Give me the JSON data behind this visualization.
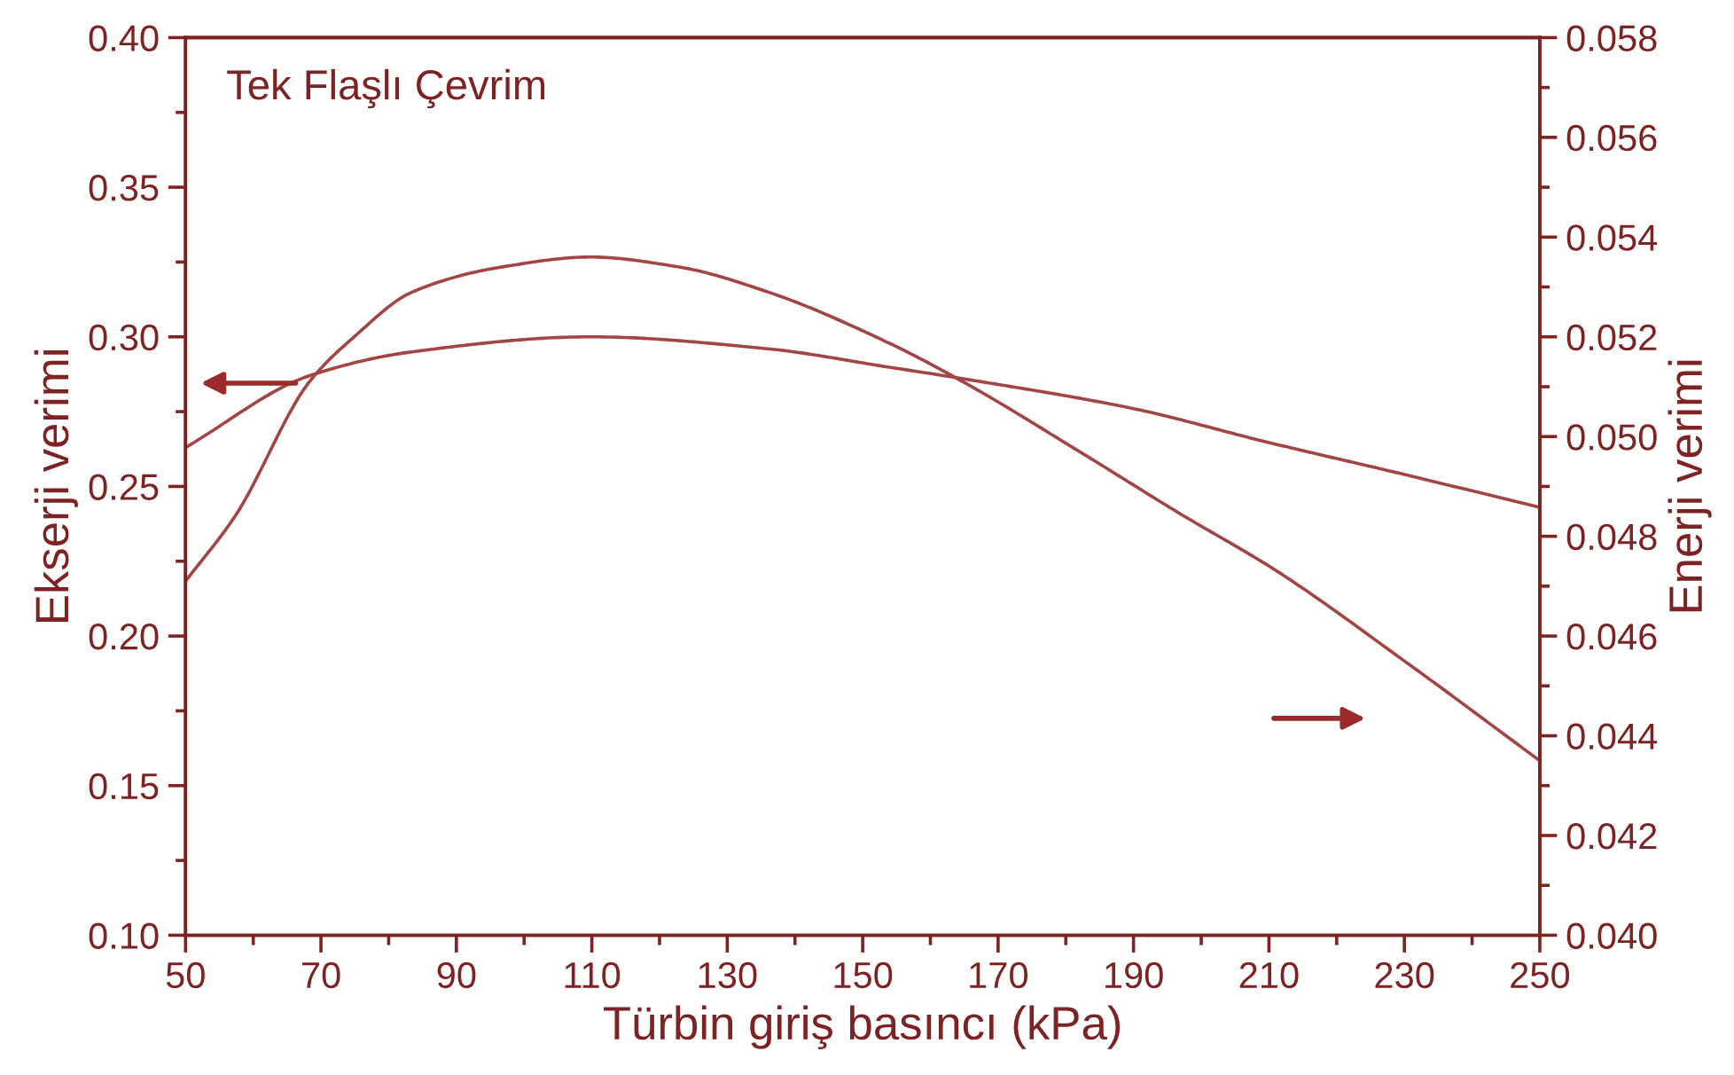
{
  "chart_data": {
    "type": "line",
    "title": "Tek Flaşlı Çevrim",
    "xlabel": "Türbin giriş basıncı (kPa)",
    "ylabel": "Ekserji verimi",
    "y2label": "Enerji verimi",
    "xlim": [
      50,
      250
    ],
    "xticks": [
      50,
      70,
      90,
      110,
      130,
      150,
      170,
      190,
      210,
      230,
      250
    ],
    "ylim": [
      0.1,
      0.4
    ],
    "yticks": [
      {
        "value": 0.1,
        "label": "0.10"
      },
      {
        "value": 0.15,
        "label": "0.15"
      },
      {
        "value": 0.2,
        "label": "0.20"
      },
      {
        "value": 0.25,
        "label": "0.25"
      },
      {
        "value": 0.3,
        "label": "0.30"
      },
      {
        "value": 0.35,
        "label": "0.35"
      },
      {
        "value": 0.4,
        "label": "0.40"
      }
    ],
    "y2lim": [
      0.04,
      0.058
    ],
    "y2ticks": [
      {
        "value": 0.04,
        "label": "0.040"
      },
      {
        "value": 0.042,
        "label": "0.042"
      },
      {
        "value": 0.044,
        "label": "0.044"
      },
      {
        "value": 0.046,
        "label": "0.046"
      },
      {
        "value": 0.048,
        "label": "0.048"
      },
      {
        "value": 0.05,
        "label": "0.050"
      },
      {
        "value": 0.052,
        "label": "0.052"
      },
      {
        "value": 0.054,
        "label": "0.054"
      },
      {
        "value": 0.056,
        "label": "0.056"
      },
      {
        "value": 0.058,
        "label": "0.058"
      }
    ],
    "grid": false,
    "legend": false,
    "marker": "none",
    "line_style": "solid",
    "series": [
      {
        "color": "#a34545",
        "x": [
          50,
          68.3,
          83.5,
          109.8,
          136,
          153.5,
          164.8,
          190,
          209.4,
          230,
          250
        ],
        "values": [
          0.263,
          0.287,
          0.295,
          0.3,
          0.296,
          0.29,
          0.286,
          0.276,
          0.265,
          0.254,
          0.243
        ]
      },
      {
        "color": "#a34545",
        "axis": "y2",
        "x": [
          50,
          57.3,
          68.3,
          74.9,
          83.5,
          96.7,
          109.8,
          122.9,
          136,
          153.5,
          164.8,
          183.2,
          196.3,
          211.2,
          230,
          250
        ],
        "values": [
          0.0471,
          0.0484,
          0.0511,
          0.052,
          0.0529,
          0.0534,
          0.0536,
          0.0534,
          0.0529,
          0.0519,
          0.0511,
          0.0496,
          0.0485,
          0.0473,
          0.0455,
          0.0435
        ]
      }
    ]
  }
}
